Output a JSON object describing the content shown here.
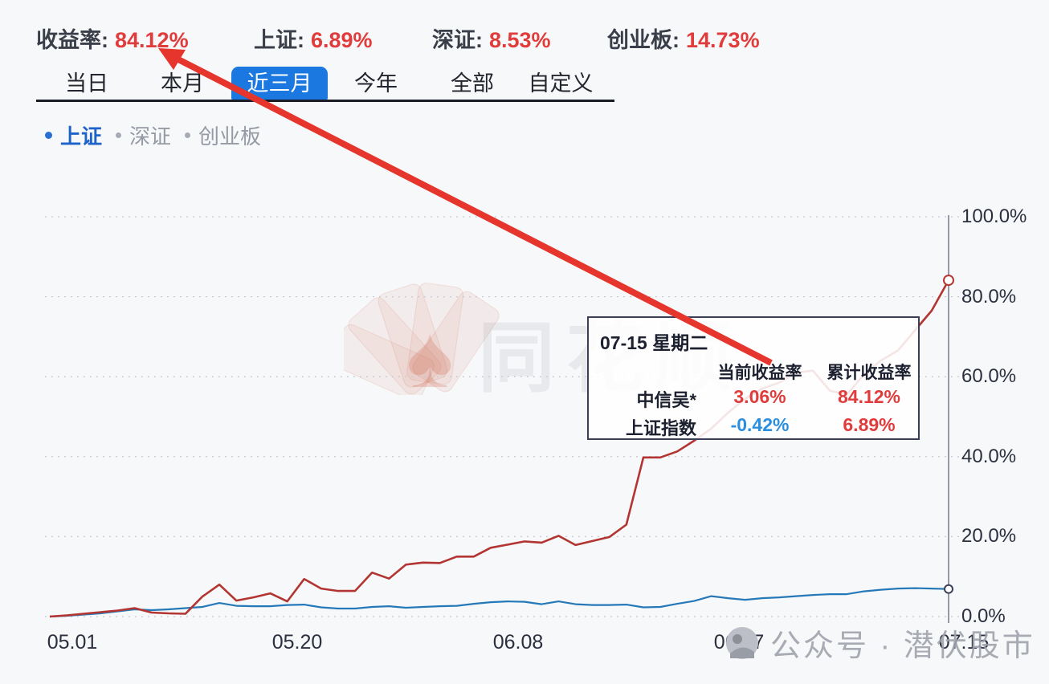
{
  "header_stats": {
    "items": [
      {
        "label": "收益率:",
        "value": "84.12%"
      },
      {
        "label": "上证:",
        "value": "6.89%"
      },
      {
        "label": "深证:",
        "value": "8.53%"
      },
      {
        "label": "创业板:",
        "value": "14.73%"
      }
    ],
    "value_color": "#e13c3c"
  },
  "tabs": {
    "items": [
      {
        "label": "当日"
      },
      {
        "label": "本月"
      },
      {
        "label": "近三月"
      },
      {
        "label": "今年"
      },
      {
        "label": "全部"
      },
      {
        "label": "自定义"
      }
    ],
    "active_index": 2,
    "active_bg_color": "#1b78e0"
  },
  "legend": {
    "items": [
      {
        "label": "上证",
        "active": true,
        "color": "#1f62c8"
      },
      {
        "label": "深证",
        "active": false,
        "color": "#959aa4"
      },
      {
        "label": "创业板",
        "active": false,
        "color": "#959aa4"
      }
    ]
  },
  "chart_data": {
    "type": "line",
    "title": "",
    "xlabel": "",
    "ylabel": "",
    "x_tick_labels": [
      "05.01",
      "05.20",
      "06.08",
      "06.27",
      "07.15"
    ],
    "y_tick_labels": [
      "0.0%",
      "20.0%",
      "40.0%",
      "60.0%",
      "80.0%",
      "100.0%"
    ],
    "y_ticks_pct": [
      0,
      20,
      40,
      60,
      80,
      100
    ],
    "ylim": [
      0,
      100
    ],
    "grid": "dotted-horizontal",
    "axis_side": "right",
    "series": [
      {
        "name": "中信吴*",
        "color": "#b23531",
        "end_value_pct": 84.12,
        "values": [
          0,
          0.3,
          0.7,
          1.1,
          1.5,
          2.1,
          1.0,
          0.8,
          0.7,
          5.0,
          8.0,
          4.0,
          4.8,
          5.8,
          3.8,
          9.4,
          7.0,
          6.4,
          6.4,
          11.0,
          9.5,
          13.0,
          13.5,
          13.4,
          15.0,
          15.0,
          17.2,
          18.0,
          18.8,
          18.5,
          20.2,
          17.9,
          18.9,
          19.9,
          23.0,
          39.8,
          39.8,
          41.3,
          44.0,
          47.0,
          51.0,
          54.5,
          57.0,
          58.5,
          61.0,
          61.5,
          56.5,
          55.5,
          60.5,
          64.0,
          66.5,
          71.5,
          76.5,
          84.12
        ]
      },
      {
        "name": "上证指数",
        "color": "#2679b8",
        "end_value_pct": 6.89,
        "values": [
          0,
          0.2,
          0.5,
          0.8,
          1.3,
          1.8,
          1.6,
          1.8,
          2.1,
          2.4,
          3.4,
          2.7,
          2.6,
          2.6,
          2.9,
          3.0,
          2.3,
          2.0,
          2.0,
          2.4,
          2.6,
          2.2,
          2.4,
          2.6,
          2.7,
          3.2,
          3.6,
          3.8,
          3.7,
          3.1,
          3.8,
          3.1,
          2.9,
          2.9,
          3.0,
          2.3,
          2.4,
          3.2,
          3.9,
          5.1,
          4.6,
          4.2,
          4.6,
          4.8,
          5.1,
          5.4,
          5.6,
          5.6,
          6.3,
          6.7,
          7.0,
          7.1,
          7.0,
          6.89
        ]
      }
    ]
  },
  "tooltip": {
    "title": "07-15 星期二",
    "columns": [
      "当前收益率",
      "累计收益率"
    ],
    "rows": [
      {
        "name": "中信吴*",
        "current": "3.06%",
        "current_color": "#e13c3c",
        "cumulative": "84.12%",
        "cumulative_color": "#e13c3c"
      },
      {
        "name": "上证指数",
        "current": "-0.42%",
        "current_color": "#2b8fe0",
        "cumulative": "6.89%",
        "cumulative_color": "#e13c3c"
      }
    ]
  },
  "watermarks": {
    "center_logo": "fan-of-cards-spade-logo",
    "center_text": "同花顺",
    "bottom_text": "公众号 · 潜伏股市"
  },
  "annotation_arrow": {
    "color": "#e5352c",
    "points_from": "tooltip cumulative return 84.12%",
    "points_to": "header 收益率 84.12%"
  }
}
